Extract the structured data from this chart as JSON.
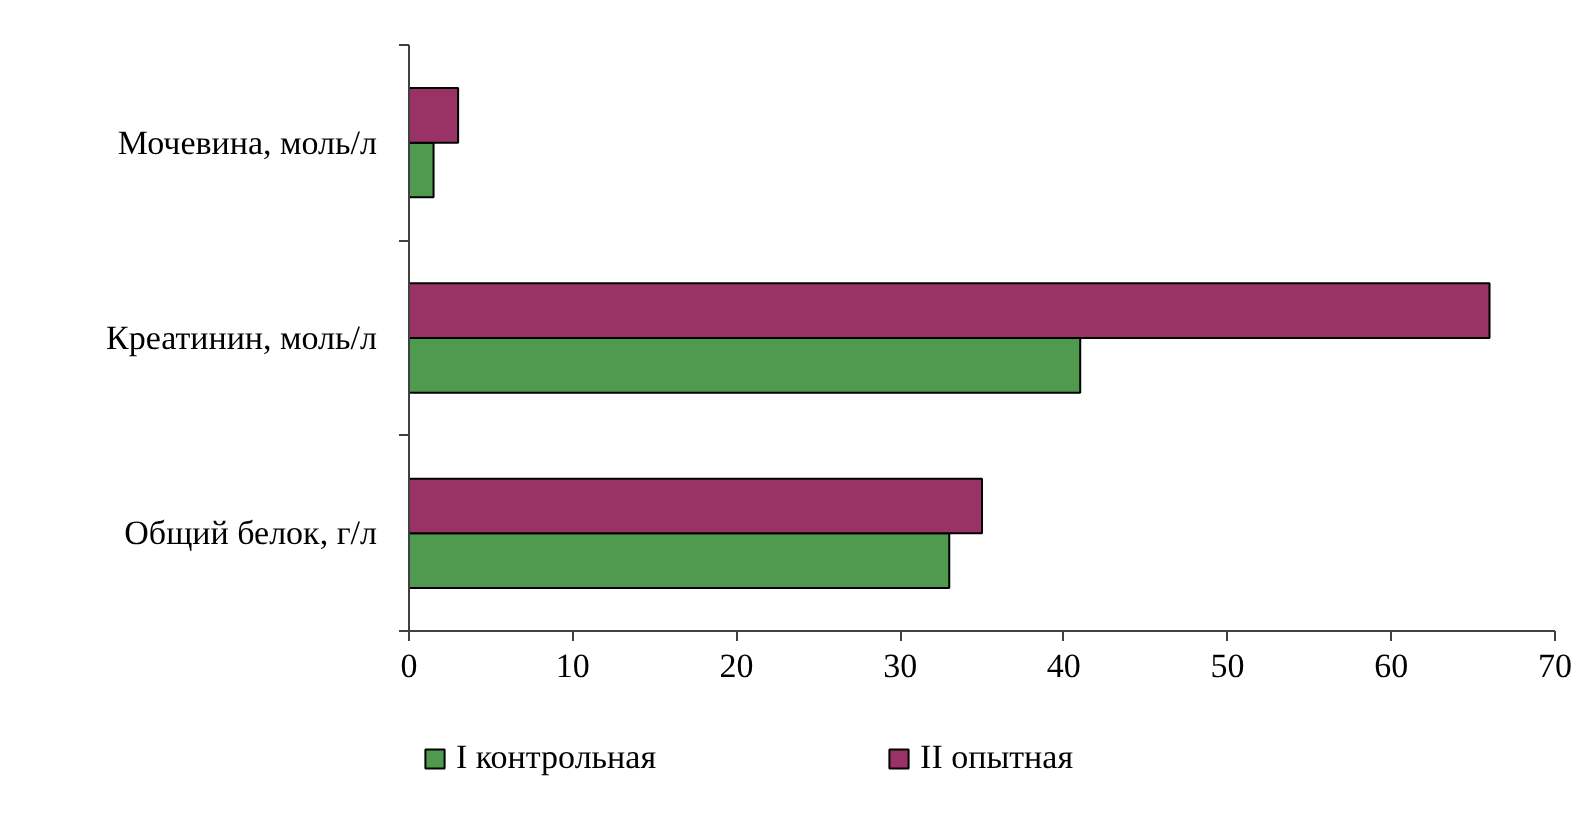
{
  "chart_data": {
    "type": "bar",
    "orientation": "horizontal",
    "categories": [
      "Мочевина, моль/л",
      "Креатинин, моль/л",
      "Общий белок, г/л"
    ],
    "series": [
      {
        "name": "I контрольная",
        "color": "#4f9a4f",
        "values": [
          1.5,
          41,
          33
        ]
      },
      {
        "name": "II опытная",
        "color": "#993366",
        "values": [
          3,
          66,
          35
        ]
      }
    ],
    "xlim": [
      0,
      70
    ],
    "xticks": [
      0,
      10,
      20,
      30,
      40,
      50,
      60,
      70
    ],
    "grid": false,
    "legend": "bottom"
  }
}
